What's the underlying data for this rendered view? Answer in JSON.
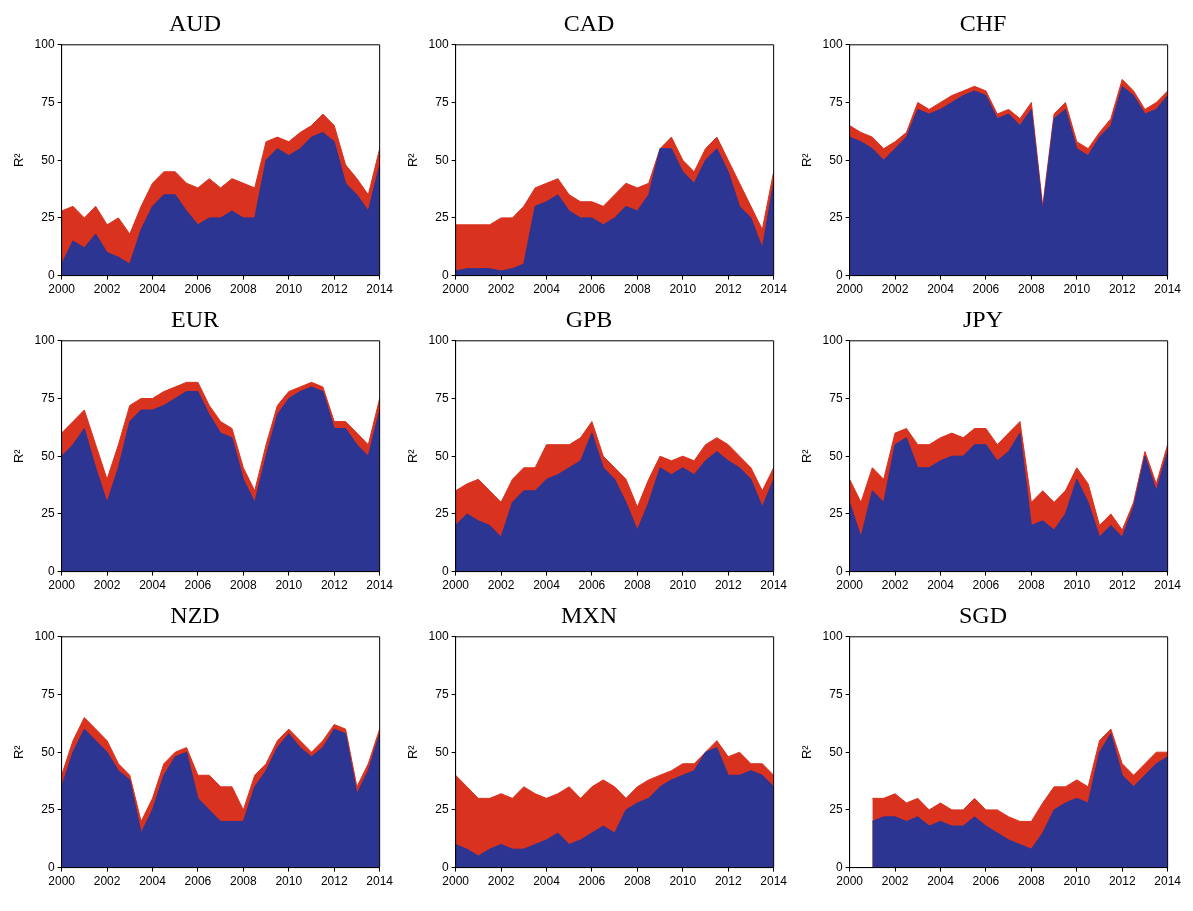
{
  "chart_data": [
    {
      "type": "area",
      "title": "AUD",
      "ylabel": "R²",
      "xlim": [
        2000,
        2014
      ],
      "ylim": [
        0,
        100
      ],
      "xticks": [
        2000,
        2002,
        2004,
        2006,
        2008,
        2010,
        2012,
        2014
      ],
      "yticks": [
        0,
        25,
        50,
        75,
        100
      ],
      "grid": false,
      "x": [
        2000,
        2000.5,
        2001,
        2001.5,
        2002,
        2002.5,
        2003,
        2003.5,
        2004,
        2004.5,
        2005,
        2005.5,
        2006,
        2006.5,
        2007,
        2007.5,
        2008,
        2008.5,
        2009,
        2009.5,
        2010,
        2010.5,
        2011,
        2011.5,
        2012,
        2012.5,
        2013,
        2013.5,
        2014
      ],
      "series": [
        {
          "color": "#d9321f",
          "values": [
            28,
            30,
            25,
            30,
            22,
            25,
            18,
            30,
            40,
            45,
            45,
            40,
            38,
            42,
            38,
            42,
            40,
            38,
            58,
            60,
            58,
            62,
            65,
            70,
            65,
            48,
            42,
            35,
            55
          ]
        },
        {
          "color": "#2c3592",
          "values": [
            5,
            15,
            12,
            18,
            10,
            8,
            5,
            20,
            30,
            35,
            35,
            28,
            22,
            25,
            25,
            28,
            25,
            25,
            50,
            55,
            52,
            55,
            60,
            62,
            58,
            40,
            35,
            28,
            48
          ]
        }
      ]
    },
    {
      "type": "area",
      "title": "CAD",
      "ylabel": "R²",
      "xlim": [
        2000,
        2014
      ],
      "ylim": [
        0,
        100
      ],
      "xticks": [
        2000,
        2002,
        2004,
        2006,
        2008,
        2010,
        2012,
        2014
      ],
      "yticks": [
        0,
        25,
        50,
        75,
        100
      ],
      "grid": false,
      "x": [
        2000,
        2000.5,
        2001,
        2001.5,
        2002,
        2002.5,
        2003,
        2003.5,
        2004,
        2004.5,
        2005,
        2005.5,
        2006,
        2006.5,
        2007,
        2007.5,
        2008,
        2008.5,
        2009,
        2009.5,
        2010,
        2010.5,
        2011,
        2011.5,
        2012,
        2012.5,
        2013,
        2013.5,
        2014
      ],
      "series": [
        {
          "color": "#d9321f",
          "values": [
            22,
            22,
            22,
            22,
            25,
            25,
            30,
            38,
            40,
            42,
            35,
            32,
            32,
            30,
            35,
            40,
            38,
            40,
            55,
            60,
            50,
            45,
            55,
            60,
            50,
            40,
            30,
            20,
            45
          ]
        },
        {
          "color": "#2c3592",
          "values": [
            2,
            3,
            3,
            3,
            2,
            3,
            5,
            30,
            32,
            35,
            28,
            25,
            25,
            22,
            25,
            30,
            28,
            35,
            55,
            55,
            45,
            40,
            50,
            55,
            45,
            30,
            25,
            12,
            40
          ]
        }
      ]
    },
    {
      "type": "area",
      "title": "CHF",
      "ylabel": "R²",
      "xlim": [
        2000,
        2014
      ],
      "ylim": [
        0,
        100
      ],
      "xticks": [
        2000,
        2002,
        2004,
        2006,
        2008,
        2010,
        2012,
        2014
      ],
      "yticks": [
        0,
        25,
        50,
        75,
        100
      ],
      "grid": false,
      "x": [
        2000,
        2000.5,
        2001,
        2001.5,
        2002,
        2002.5,
        2003,
        2003.5,
        2004,
        2004.5,
        2005,
        2005.5,
        2006,
        2006.5,
        2007,
        2007.5,
        2008,
        2008.5,
        2009,
        2009.5,
        2010,
        2010.5,
        2011,
        2011.5,
        2012,
        2012.5,
        2013,
        2013.5,
        2014
      ],
      "series": [
        {
          "color": "#d9321f",
          "values": [
            65,
            62,
            60,
            55,
            58,
            62,
            75,
            72,
            75,
            78,
            80,
            82,
            80,
            70,
            72,
            68,
            75,
            30,
            70,
            75,
            58,
            55,
            62,
            68,
            85,
            80,
            72,
            75,
            80
          ]
        },
        {
          "color": "#2c3592",
          "values": [
            60,
            58,
            55,
            50,
            55,
            60,
            72,
            70,
            72,
            75,
            78,
            80,
            78,
            68,
            70,
            65,
            72,
            28,
            68,
            72,
            55,
            52,
            60,
            65,
            82,
            78,
            70,
            72,
            78
          ]
        }
      ]
    },
    {
      "type": "area",
      "title": "EUR",
      "ylabel": "R²",
      "xlim": [
        2000,
        2014
      ],
      "ylim": [
        0,
        100
      ],
      "xticks": [
        2000,
        2002,
        2004,
        2006,
        2008,
        2010,
        2012,
        2014
      ],
      "yticks": [
        0,
        25,
        50,
        75,
        100
      ],
      "grid": false,
      "x": [
        2000,
        2000.5,
        2001,
        2001.5,
        2002,
        2002.5,
        2003,
        2003.5,
        2004,
        2004.5,
        2005,
        2005.5,
        2006,
        2006.5,
        2007,
        2007.5,
        2008,
        2008.5,
        2009,
        2009.5,
        2010,
        2010.5,
        2011,
        2011.5,
        2012,
        2012.5,
        2013,
        2013.5,
        2014
      ],
      "series": [
        {
          "color": "#d9321f",
          "values": [
            60,
            65,
            70,
            55,
            40,
            55,
            72,
            75,
            75,
            78,
            80,
            82,
            82,
            72,
            65,
            62,
            45,
            35,
            55,
            72,
            78,
            80,
            82,
            80,
            65,
            65,
            60,
            55,
            75
          ]
        },
        {
          "color": "#2c3592",
          "values": [
            50,
            55,
            62,
            45,
            30,
            45,
            65,
            70,
            70,
            72,
            75,
            78,
            78,
            68,
            60,
            58,
            40,
            30,
            50,
            68,
            75,
            78,
            80,
            78,
            62,
            62,
            55,
            50,
            70
          ]
        }
      ]
    },
    {
      "type": "area",
      "title": "GPB",
      "ylabel": "R²",
      "xlim": [
        2000,
        2014
      ],
      "ylim": [
        0,
        100
      ],
      "xticks": [
        2000,
        2002,
        2004,
        2006,
        2008,
        2010,
        2012,
        2014
      ],
      "yticks": [
        0,
        25,
        50,
        75,
        100
      ],
      "grid": false,
      "x": [
        2000,
        2000.5,
        2001,
        2001.5,
        2002,
        2002.5,
        2003,
        2003.5,
        2004,
        2004.5,
        2005,
        2005.5,
        2006,
        2006.5,
        2007,
        2007.5,
        2008,
        2008.5,
        2009,
        2009.5,
        2010,
        2010.5,
        2011,
        2011.5,
        2012,
        2012.5,
        2013,
        2013.5,
        2014
      ],
      "series": [
        {
          "color": "#d9321f",
          "values": [
            35,
            38,
            40,
            35,
            30,
            40,
            45,
            45,
            55,
            55,
            55,
            58,
            65,
            50,
            45,
            40,
            28,
            40,
            50,
            48,
            50,
            48,
            55,
            58,
            55,
            50,
            45,
            35,
            45
          ]
        },
        {
          "color": "#2c3592",
          "values": [
            20,
            25,
            22,
            20,
            15,
            30,
            35,
            35,
            40,
            42,
            45,
            48,
            60,
            45,
            40,
            30,
            18,
            30,
            45,
            42,
            45,
            42,
            48,
            52,
            48,
            45,
            40,
            28,
            40
          ]
        }
      ]
    },
    {
      "type": "area",
      "title": "JPY",
      "ylabel": "R²",
      "xlim": [
        2000,
        2014
      ],
      "ylim": [
        0,
        100
      ],
      "xticks": [
        2000,
        2002,
        2004,
        2006,
        2008,
        2010,
        2012,
        2014
      ],
      "yticks": [
        0,
        25,
        50,
        75,
        100
      ],
      "grid": false,
      "x": [
        2000,
        2000.5,
        2001,
        2001.5,
        2002,
        2002.5,
        2003,
        2003.5,
        2004,
        2004.5,
        2005,
        2005.5,
        2006,
        2006.5,
        2007,
        2007.5,
        2008,
        2008.5,
        2009,
        2009.5,
        2010,
        2010.5,
        2011,
        2011.5,
        2012,
        2012.5,
        2013,
        2013.5,
        2014
      ],
      "series": [
        {
          "color": "#d9321f",
          "values": [
            40,
            30,
            45,
            40,
            60,
            62,
            55,
            55,
            58,
            60,
            58,
            62,
            62,
            55,
            60,
            65,
            30,
            35,
            30,
            35,
            45,
            38,
            20,
            25,
            18,
            30,
            52,
            38,
            55
          ]
        },
        {
          "color": "#2c3592",
          "values": [
            30,
            15,
            35,
            30,
            55,
            58,
            45,
            45,
            48,
            50,
            50,
            55,
            55,
            48,
            52,
            60,
            20,
            22,
            18,
            25,
            40,
            30,
            15,
            20,
            15,
            28,
            50,
            35,
            52
          ]
        }
      ]
    },
    {
      "type": "area",
      "title": "NZD",
      "ylabel": "R²",
      "xlim": [
        2000,
        2014
      ],
      "ylim": [
        0,
        100
      ],
      "xticks": [
        2000,
        2002,
        2004,
        2006,
        2008,
        2010,
        2012,
        2014
      ],
      "yticks": [
        0,
        25,
        50,
        75,
        100
      ],
      "grid": false,
      "x": [
        2000,
        2000.5,
        2001,
        2001.5,
        2002,
        2002.5,
        2003,
        2003.5,
        2004,
        2004.5,
        2005,
        2005.5,
        2006,
        2006.5,
        2007,
        2007.5,
        2008,
        2008.5,
        2009,
        2009.5,
        2010,
        2010.5,
        2011,
        2011.5,
        2012,
        2012.5,
        2013,
        2013.5,
        2014
      ],
      "series": [
        {
          "color": "#d9321f",
          "values": [
            40,
            55,
            65,
            60,
            55,
            45,
            40,
            20,
            30,
            45,
            50,
            52,
            40,
            40,
            35,
            35,
            25,
            40,
            45,
            55,
            60,
            55,
            50,
            55,
            62,
            60,
            35,
            45,
            60
          ]
        },
        {
          "color": "#2c3592",
          "values": [
            35,
            50,
            60,
            55,
            50,
            42,
            38,
            15,
            25,
            40,
            48,
            50,
            30,
            25,
            20,
            20,
            20,
            35,
            42,
            52,
            58,
            52,
            48,
            52,
            60,
            58,
            32,
            42,
            58
          ]
        }
      ]
    },
    {
      "type": "area",
      "title": "MXN",
      "ylabel": "R²",
      "xlim": [
        2000,
        2014
      ],
      "ylim": [
        0,
        100
      ],
      "xticks": [
        2000,
        2002,
        2004,
        2006,
        2008,
        2010,
        2012,
        2014
      ],
      "yticks": [
        0,
        25,
        50,
        75,
        100
      ],
      "grid": false,
      "x": [
        2000,
        2000.5,
        2001,
        2001.5,
        2002,
        2002.5,
        2003,
        2003.5,
        2004,
        2004.5,
        2005,
        2005.5,
        2006,
        2006.5,
        2007,
        2007.5,
        2008,
        2008.5,
        2009,
        2009.5,
        2010,
        2010.5,
        2011,
        2011.5,
        2012,
        2012.5,
        2013,
        2013.5,
        2014
      ],
      "series": [
        {
          "color": "#d9321f",
          "values": [
            40,
            35,
            30,
            30,
            32,
            30,
            35,
            32,
            30,
            32,
            35,
            30,
            35,
            38,
            35,
            30,
            35,
            38,
            40,
            42,
            45,
            45,
            50,
            55,
            48,
            50,
            45,
            45,
            40
          ]
        },
        {
          "color": "#2c3592",
          "values": [
            10,
            8,
            5,
            8,
            10,
            8,
            8,
            10,
            12,
            15,
            10,
            12,
            15,
            18,
            15,
            25,
            28,
            30,
            35,
            38,
            40,
            42,
            50,
            52,
            40,
            40,
            42,
            40,
            35
          ]
        }
      ]
    },
    {
      "type": "area",
      "title": "SGD",
      "ylabel": "R²",
      "xlim": [
        2000,
        2014
      ],
      "ylim": [
        0,
        100
      ],
      "xticks": [
        2000,
        2002,
        2004,
        2006,
        2008,
        2010,
        2012,
        2014
      ],
      "yticks": [
        0,
        25,
        50,
        75,
        100
      ],
      "grid": false,
      "x": [
        2001,
        2001.5,
        2002,
        2002.5,
        2003,
        2003.5,
        2004,
        2004.5,
        2005,
        2005.5,
        2006,
        2006.5,
        2007,
        2007.5,
        2008,
        2008.5,
        2009,
        2009.5,
        2010,
        2010.5,
        2011,
        2011.5,
        2012,
        2012.5,
        2013,
        2013.5,
        2014
      ],
      "series": [
        {
          "color": "#d9321f",
          "values": [
            30,
            30,
            32,
            28,
            30,
            25,
            28,
            25,
            25,
            30,
            25,
            25,
            22,
            20,
            20,
            28,
            35,
            35,
            38,
            35,
            55,
            60,
            45,
            40,
            45,
            50,
            50
          ]
        },
        {
          "color": "#2c3592",
          "values": [
            20,
            22,
            22,
            20,
            22,
            18,
            20,
            18,
            18,
            22,
            18,
            15,
            12,
            10,
            8,
            15,
            25,
            28,
            30,
            28,
            50,
            58,
            40,
            35,
            40,
            45,
            48
          ]
        }
      ]
    }
  ]
}
